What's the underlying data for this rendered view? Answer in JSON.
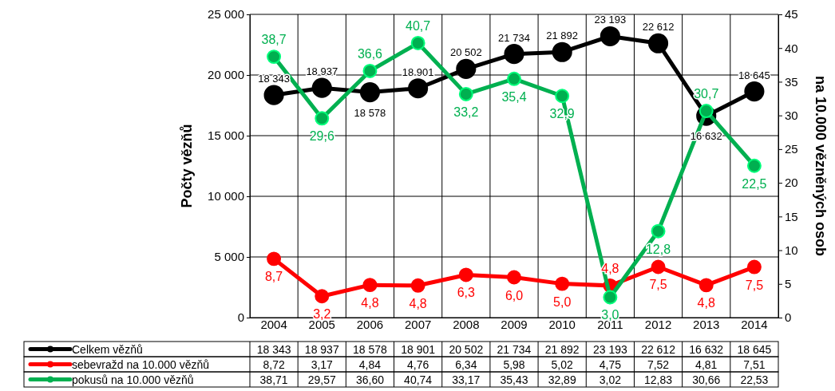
{
  "chart_data": {
    "type": "line",
    "categories": [
      "2004",
      "2005",
      "2006",
      "2007",
      "2008",
      "2009",
      "2010",
      "2011",
      "2012",
      "2013",
      "2014"
    ],
    "ylabel": "Počty vězňů",
    "y2label": "na 10.000 vězněných osob",
    "ylim": [
      0,
      25000
    ],
    "yticks": [
      {
        "value": 0,
        "label": "0"
      },
      {
        "value": 5000,
        "label": "5 000"
      },
      {
        "value": 10000,
        "label": "10 000"
      },
      {
        "value": 15000,
        "label": "15 000"
      },
      {
        "value": 20000,
        "label": "20 000"
      },
      {
        "value": 25000,
        "label": "25 000"
      }
    ],
    "y2lim": [
      0,
      45
    ],
    "y2ticks": [
      0,
      5,
      10,
      15,
      20,
      25,
      30,
      35,
      40,
      45
    ],
    "grid": true,
    "legend": "bottom",
    "marker": "circle",
    "line_style": "solid",
    "data_labels": true,
    "series": [
      {
        "name": "Celkem vězňů",
        "color": "#000000",
        "values": [
          18343,
          18937,
          18578,
          18901,
          20502,
          21734,
          21892,
          23193,
          22612,
          16632,
          18645
        ],
        "value_labels": [
          "18 343",
          "18 937",
          "18 578",
          "18 901",
          "20 502",
          "21 734",
          "21 892",
          "23 193",
          "22 612",
          "16 632",
          "18 645"
        ]
      },
      {
        "name": "sebevražd na 10.000 vězňů",
        "color": "#ff0000",
        "axis": "y2",
        "values": [
          8.72,
          3.17,
          4.84,
          4.76,
          6.34,
          5.98,
          5.02,
          4.75,
          7.52,
          4.81,
          7.51
        ],
        "value_labels": [
          "8,72",
          "3,17",
          "4,84",
          "4,76",
          "6,34",
          "5,98",
          "5,02",
          "4,75",
          "7,52",
          "4,81",
          "7,51"
        ]
      },
      {
        "name": "pokusů na 10.000 vězňů",
        "color": "#00b050",
        "axis": "y2",
        "values": [
          38.71,
          29.57,
          36.6,
          40.74,
          33.17,
          35.43,
          32.89,
          3.02,
          12.83,
          30.66,
          22.53
        ],
        "value_labels": [
          "38,71",
          "29,57",
          "36,60",
          "40,74",
          "33,17",
          "35,43",
          "32,89",
          "3,02",
          "12,83",
          "30,66",
          "22,53"
        ]
      }
    ],
    "annotations": [
      "8,7",
      "3,2",
      "4,8",
      "4,8",
      "6,3",
      "6,0",
      "5,0",
      "4,8",
      "7,5",
      "4,8",
      "7,5",
      "38,7",
      "29,6",
      "36,6",
      "40,7",
      "33,2",
      "35,4",
      "32,9",
      "3,0",
      "12,8",
      "30,7",
      "22,5"
    ]
  }
}
